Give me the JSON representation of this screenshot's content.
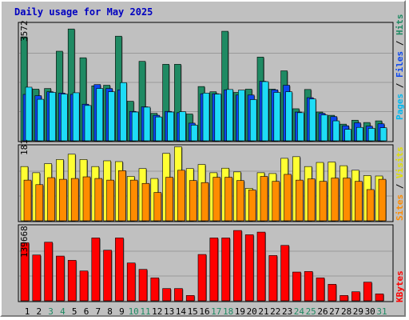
{
  "chart_data": {
    "type": "bar",
    "title": "Daily usage for May 2025",
    "days": [
      "1",
      "2",
      "3",
      "4",
      "5",
      "6",
      "7",
      "8",
      "9",
      "10",
      "11",
      "12",
      "13",
      "14",
      "15",
      "16",
      "17",
      "18",
      "19",
      "20",
      "21",
      "22",
      "23",
      "24",
      "25",
      "26",
      "27",
      "28",
      "29",
      "30",
      "31"
    ],
    "weekend_days": [
      3,
      4,
      10,
      11,
      17,
      18,
      24,
      25,
      31
    ],
    "panels": {
      "top": {
        "max_label": "3572",
        "max": 3572,
        "legend": [
          "Pages",
          "Files",
          "Hits"
        ],
        "series": [
          {
            "name": "Hits",
            "color": "#1f8a63",
            "values": [
              3180,
              1580,
              1600,
              2740,
              3420,
              2540,
              1680,
              1700,
              3200,
              1210,
              2430,
              840,
              2340,
              2340,
              820,
              1660,
              1500,
              3350,
              1480,
              1580,
              2560,
              1580,
              2140,
              980,
              1570,
              880,
              780,
              510,
              630,
              560,
              610
            ]
          },
          {
            "name": "Files",
            "color": "#0b47f0",
            "values": [
              1420,
              1380,
              1500,
              1460,
              1420,
              1120,
              1720,
              1600,
              1560,
              900,
              1040,
              780,
              900,
              860,
              540,
              1440,
              1440,
              1560,
              1400,
              1400,
              1820,
              1560,
              1700,
              880,
              1320,
              840,
              740,
              460,
              550,
              450,
              520
            ]
          },
          {
            "name": "Pages",
            "color": "#1edcf6",
            "values": [
              1640,
              1270,
              1480,
              1430,
              1470,
              1080,
              1600,
              1500,
              1780,
              880,
              1030,
              730,
              880,
              890,
              480,
              1460,
              1430,
              1570,
              1550,
              1260,
              1810,
              1480,
              1500,
              860,
              1280,
              790,
              610,
              350,
              410,
              380,
              400
            ]
          }
        ]
      },
      "middle": {
        "max_label": "181",
        "max": 181,
        "legend": [
          "Sites",
          "Visits"
        ],
        "series": [
          {
            "name": "Visits",
            "color": "#ffff33",
            "values": [
              132,
              117,
              139,
              149,
              162,
              149,
              132,
              146,
              144,
              108,
              127,
              103,
              164,
              180,
              127,
              137,
              117,
              128,
              119,
              79,
              117,
              115,
              152,
              156,
              132,
              142,
              143,
              134,
              123,
              110,
              109
            ]
          },
          {
            "name": "Sites",
            "color": "#ff8c00",
            "values": [
              99,
              88,
              105,
              101,
              103,
              107,
              103,
              99,
              122,
              99,
              91,
              69,
              106,
              123,
              98,
              93,
              106,
              106,
              98,
              75,
              108,
              96,
              113,
              99,
              102,
              96,
              104,
              104,
              96,
              76,
              101
            ]
          }
        ]
      },
      "bottom": {
        "max_label": "139668",
        "max": 139668,
        "legend": [
          "KBytes"
        ],
        "series": [
          {
            "name": "KBytes",
            "color": "#ff0000",
            "values": [
              109000,
              86000,
              110000,
              84000,
              76000,
              56000,
              118000,
              95000,
              118000,
              71000,
              59000,
              43000,
              23000,
              23000,
              10000,
              87000,
              118000,
              118000,
              132000,
              124000,
              129000,
              85000,
              104000,
              54000,
              55000,
              43000,
              31000,
              10000,
              17000,
              35000,
              13000
            ]
          }
        ]
      }
    }
  }
}
